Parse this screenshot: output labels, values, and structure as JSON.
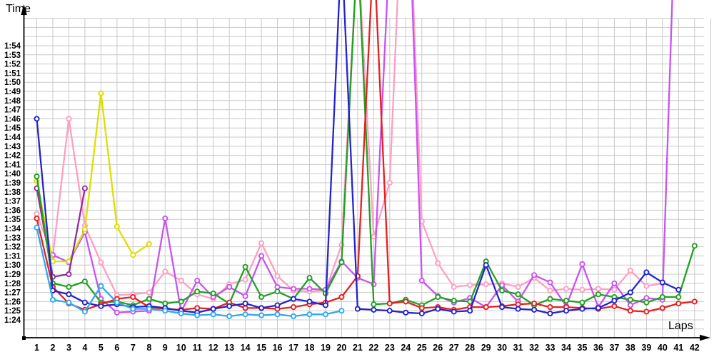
{
  "labels": {
    "time": "Time",
    "laps": "Laps"
  },
  "chart_data": {
    "type": "line",
    "title": "",
    "xlabel": "Laps",
    "ylabel": "Time",
    "x_ticks": [
      1,
      2,
      3,
      4,
      5,
      6,
      7,
      8,
      9,
      10,
      11,
      12,
      13,
      14,
      15,
      16,
      17,
      18,
      19,
      20,
      21,
      22,
      23,
      24,
      25,
      26,
      27,
      28,
      29,
      30,
      31,
      32,
      33,
      34,
      35,
      36,
      37,
      38,
      39,
      40,
      41,
      42
    ],
    "y_ticks": [
      "1:24",
      "1:25",
      "1:26",
      "1:27",
      "1:28",
      "1:29",
      "1:30",
      "1:31",
      "1:32",
      "1:33",
      "1:34",
      "1:35",
      "1:36",
      "1:37",
      "1:38",
      "1:39",
      "1:40",
      "1:41",
      "1:42",
      "1:43",
      "1:44",
      "1:45",
      "1:46",
      "1:47",
      "1:48",
      "1:49",
      "1:50",
      "1:51",
      "1:52",
      "1:53",
      "1:54"
    ],
    "y_axis": {
      "unit": "minutes:seconds lap time",
      "min": "1:24",
      "max": "1:54",
      "grid": true
    },
    "legend": "none (series identified by color only)",
    "note": "values are lap times in seconds past 1:00; values >= 119 represent spikes that exit the top of the chart (pit stops)",
    "grid_color": "#c9c9c9",
    "series": [
      {
        "name": "pink",
        "color": "#ff9ec4",
        "start_lap": 1,
        "values": [
          95.6,
          91.0,
          106.0,
          94.3,
          90.3,
          86.7,
          86.8,
          87.0,
          89.3,
          88.3,
          86.8,
          86.3,
          87.9,
          88.4,
          92.4,
          88.8,
          87.2,
          87.1,
          87.2,
          92.2,
          125,
          93.1,
          99.0,
          140,
          94.8,
          90.2,
          87.6,
          87.8,
          87.9,
          88.0,
          87.6,
          88.6,
          87.2,
          87.4,
          87.3,
          87.4,
          87.3,
          89.4,
          87.7,
          88.0
        ]
      },
      {
        "name": "violet",
        "color": "#c853f0",
        "start_lap": 2,
        "values": [
          91.1,
          90.3,
          93.6,
          86.3,
          84.8,
          84.9,
          85.0,
          95.1,
          84.9,
          88.3,
          86.5,
          87.6,
          86.6,
          91.0,
          87.6,
          87.4,
          87.4,
          87.3,
          90.4,
          88.6,
          87.9,
          125,
          140,
          88.3,
          86.6,
          85.9,
          86.4,
          85.4,
          87.8,
          86.0,
          88.9,
          88.1,
          85.5,
          90.1,
          85.4,
          88.0,
          85.6,
          86.4,
          86.2,
          140
        ]
      },
      {
        "name": "yellow",
        "color": "#dede00",
        "start_lap": 1,
        "values": [
          99.2,
          90.4,
          90.4,
          93.9,
          108.8,
          94.2,
          91.1,
          92.3
        ]
      },
      {
        "name": "purple",
        "color": "#8e2f9e",
        "start_lap": 1,
        "values": [
          98.4,
          88.7,
          89.0,
          98.4
        ]
      },
      {
        "name": "green",
        "color": "#22a022",
        "start_lap": 1,
        "values": [
          99.7,
          88.0,
          87.6,
          88.2,
          85.9,
          86.0,
          85.6,
          86.3,
          85.8,
          86.0,
          87.1,
          86.9,
          85.8,
          89.8,
          86.5,
          87.1,
          86.3,
          88.6,
          86.9,
          90.3,
          125,
          85.7,
          85.8,
          86.2,
          85.6,
          86.5,
          86.1,
          86.0,
          90.4,
          87.2,
          86.8,
          85.6,
          86.3,
          86.1,
          85.9,
          86.8,
          86.5,
          86.2,
          85.9,
          86.5,
          86.5,
          92.1
        ]
      },
      {
        "name": "red",
        "color": "#e62020",
        "start_lap": 1,
        "values": [
          95.1,
          87.6,
          85.8,
          85.1,
          85.7,
          86.3,
          86.5,
          85.4,
          85.2,
          85.1,
          85.3,
          85.2,
          85.9,
          85.3,
          85.3,
          85.2,
          85.4,
          85.7,
          85.9,
          86.5,
          88.8,
          125,
          85.8,
          86.0,
          85.3,
          85.4,
          85.1,
          85.4,
          85.4,
          85.5,
          85.7,
          85.8,
          85.4,
          85.4,
          85.3,
          85.2,
          85.5,
          85.0,
          84.9,
          85.3,
          85.8,
          86.0
        ]
      },
      {
        "name": "dark-blue",
        "color": "#2424cc",
        "start_lap": 1,
        "values": [
          106.0,
          87.2,
          86.8,
          85.9,
          85.5,
          85.7,
          85.4,
          85.5,
          85.3,
          85.0,
          84.8,
          85.2,
          85.5,
          85.8,
          85.3,
          85.6,
          86.3,
          86.0,
          85.6,
          125,
          85.2,
          85.1,
          85.0,
          84.8,
          84.7,
          85.2,
          84.9,
          85.0,
          90.0,
          85.4,
          85.2,
          85.1,
          84.7,
          85.0,
          85.2,
          85.3,
          86.1,
          87.0,
          89.2,
          88.1,
          87.3
        ]
      },
      {
        "name": "light-blue",
        "color": "#2fa9ee",
        "start_lap": 1,
        "values": [
          94.1,
          86.2,
          85.9,
          84.9,
          87.7,
          85.9,
          85.2,
          85.2,
          85.0,
          84.7,
          84.5,
          84.6,
          84.4,
          84.6,
          84.5,
          84.6,
          84.4,
          84.6,
          84.6,
          85.0
        ]
      }
    ]
  }
}
